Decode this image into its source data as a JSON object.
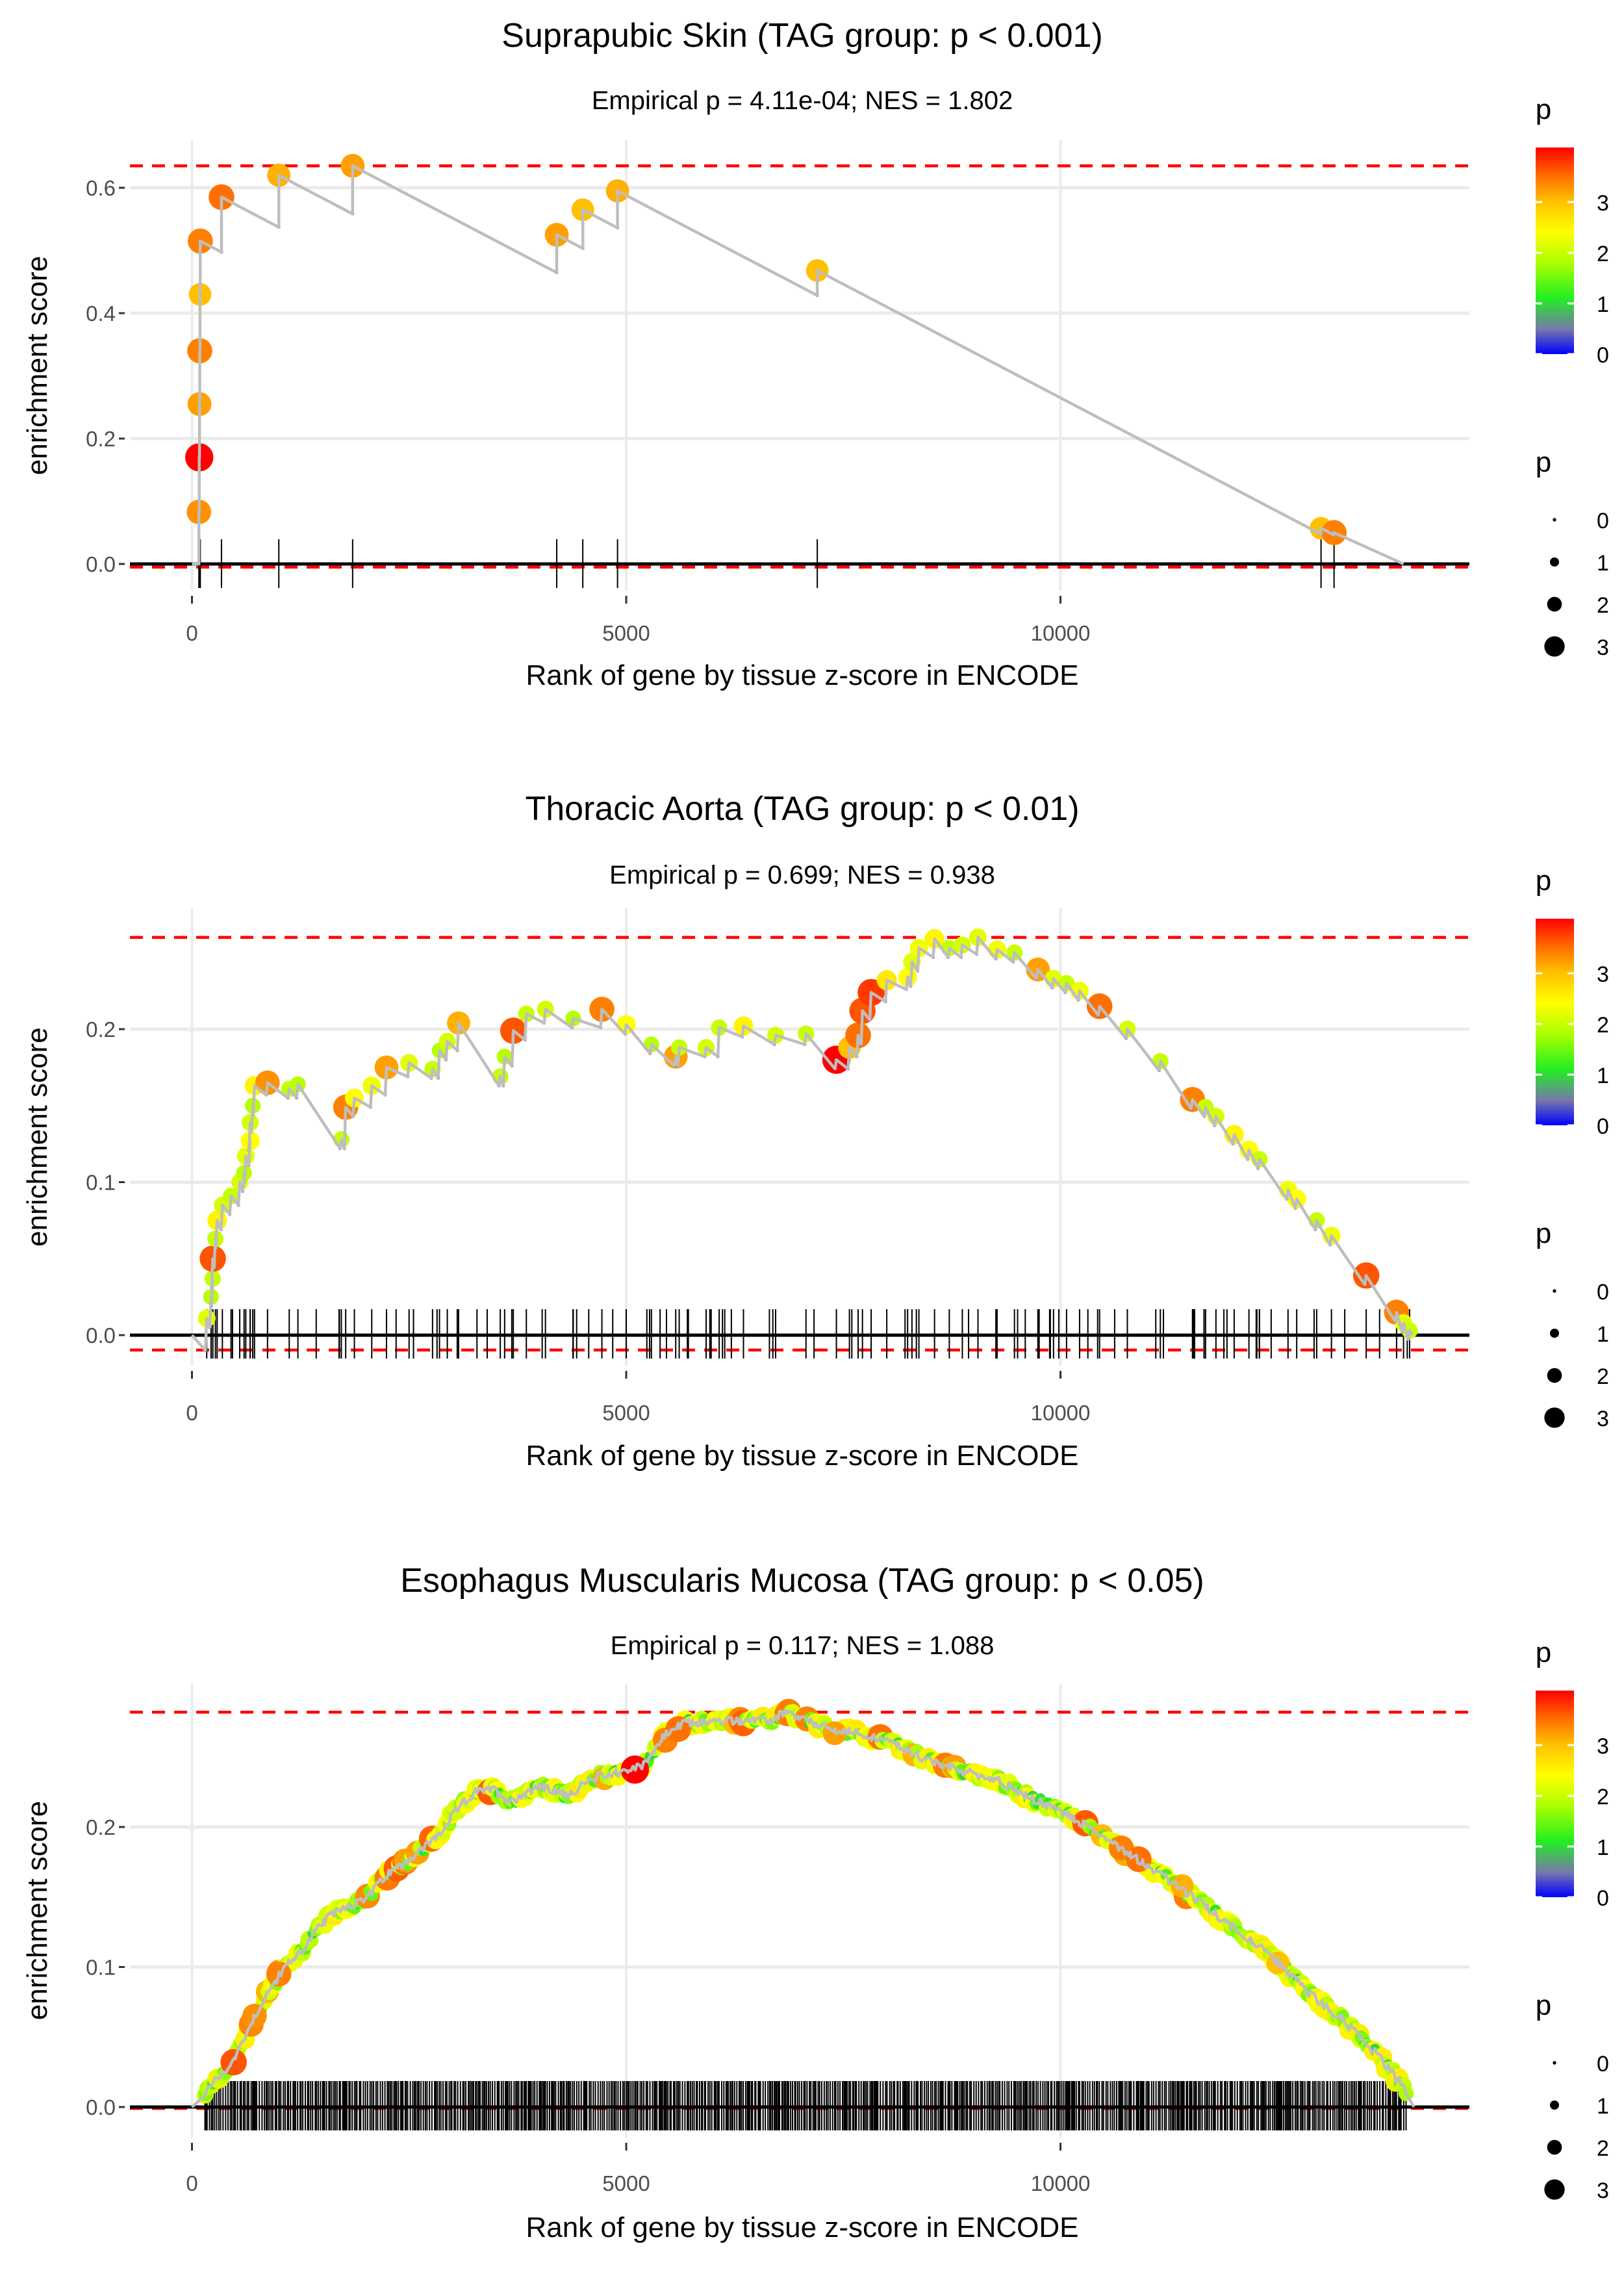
{
  "chart_data": [
    {
      "type": "scatter",
      "title": "Suprapubic Skin (TAG group: p < 0.001)",
      "subtitle": "Empirical p = 4.11e-04; NES = 1.802",
      "xlabel": "Rank of gene by tissue z-score in ENCODE",
      "ylabel": "enrichment score",
      "xticks": [
        "0",
        "5000",
        "10000"
      ],
      "xtick_values": [
        0,
        5000,
        10000
      ],
      "yticks": [
        "0.0",
        "0.2",
        "0.4",
        "0.6"
      ],
      "ytick_values": [
        0,
        0.2,
        0.4,
        0.6
      ],
      "xlim": [
        -800,
        14700
      ],
      "ylim": [
        -0.04,
        0.67
      ],
      "max_line": 0.635,
      "min_line": -0.005,
      "end_rank": 13950,
      "miss_step": 7.25e-05,
      "hits": [
        [
          80,
          0.083,
          3.3
        ],
        [
          84,
          0.17,
          3.9
        ],
        [
          87,
          0.255,
          3.2
        ],
        [
          90,
          0.34,
          3.4
        ],
        [
          93,
          0.43,
          3.0
        ],
        [
          96,
          0.515,
          3.4
        ],
        [
          340,
          0.585,
          3.5
        ],
        [
          1000,
          0.62,
          3.1
        ],
        [
          1850,
          0.635,
          3.2
        ],
        [
          4200,
          0.525,
          3.2
        ],
        [
          4500,
          0.565,
          3.0
        ],
        [
          4900,
          0.595,
          3.1
        ],
        [
          7200,
          0.468,
          3.0
        ],
        [
          13000,
          0.057,
          3.0
        ],
        [
          13150,
          0.05,
          3.4
        ]
      ],
      "legend": {
        "color_title": "p",
        "color_ticks": [
          "0",
          "1",
          "2",
          "3"
        ],
        "size_title": "p",
        "size_ticks": [
          "0",
          "1",
          "2",
          "3"
        ]
      }
    },
    {
      "type": "scatter",
      "title": "Thoracic Aorta (TAG group: p < 0.01)",
      "subtitle": "Empirical p = 0.699; NES = 0.938",
      "xlabel": "Rank of gene by tissue z-score in ENCODE",
      "ylabel": "enrichment score",
      "xticks": [
        "0",
        "5000",
        "10000"
      ],
      "xtick_values": [
        0,
        5000,
        10000
      ],
      "yticks": [
        "0.0",
        "0.1",
        "0.2"
      ],
      "ytick_values": [
        0,
        0.1,
        0.2
      ],
      "xlim": [
        -800,
        14700
      ],
      "ylim": [
        -0.02,
        0.27
      ],
      "max_line": 0.26,
      "min_line": -0.0097,
      "end_rank": 14050,
      "hits": [
        [
          170,
          0.011,
          2.2
        ],
        [
          220,
          0.025,
          1.9
        ],
        [
          240,
          0.037,
          2.0
        ],
        [
          240,
          0.05,
          3.6
        ],
        [
          270,
          0.063,
          2.0
        ],
        [
          290,
          0.075,
          2.5
        ],
        [
          350,
          0.085,
          2.1
        ],
        [
          450,
          0.091,
          2.0
        ],
        [
          550,
          0.1,
          2.1
        ],
        [
          600,
          0.106,
          1.9
        ],
        [
          620,
          0.117,
          2.2
        ],
        [
          670,
          0.127,
          2.4
        ],
        [
          670,
          0.139,
          2.1
        ],
        [
          700,
          0.15,
          1.9
        ],
        [
          720,
          0.163,
          2.5
        ],
        [
          870,
          0.165,
          3.3
        ],
        [
          1120,
          0.161,
          2.0
        ],
        [
          1220,
          0.164,
          1.9
        ],
        [
          1720,
          0.128,
          2.0
        ],
        [
          1770,
          0.149,
          3.4
        ],
        [
          1870,
          0.155,
          2.4
        ],
        [
          2070,
          0.163,
          2.3
        ],
        [
          2240,
          0.175,
          3.2
        ],
        [
          2500,
          0.178,
          2.2
        ],
        [
          2770,
          0.174,
          2.0
        ],
        [
          2850,
          0.186,
          1.9
        ],
        [
          2940,
          0.192,
          2.1
        ],
        [
          3070,
          0.204,
          3.1
        ],
        [
          3550,
          0.169,
          2.0
        ],
        [
          3600,
          0.182,
          1.9
        ],
        [
          3700,
          0.199,
          3.6
        ],
        [
          3850,
          0.21,
          2.0
        ],
        [
          4070,
          0.213,
          2.1
        ],
        [
          4390,
          0.207,
          1.9
        ],
        [
          4720,
          0.213,
          3.4
        ],
        [
          5000,
          0.203,
          2.4
        ],
        [
          5290,
          0.19,
          1.9
        ],
        [
          5570,
          0.182,
          3.2
        ],
        [
          5610,
          0.188,
          2.0
        ],
        [
          5920,
          0.188,
          2.1
        ],
        [
          6070,
          0.201,
          2.0
        ],
        [
          6350,
          0.202,
          2.5
        ],
        [
          6720,
          0.196,
          2.1
        ],
        [
          7070,
          0.197,
          2.0
        ],
        [
          7420,
          0.18,
          3.9
        ],
        [
          7570,
          0.188,
          3.0
        ],
        [
          7670,
          0.196,
          3.5
        ],
        [
          7720,
          0.212,
          3.6
        ],
        [
          7820,
          0.224,
          3.7
        ],
        [
          8000,
          0.232,
          2.6
        ],
        [
          8240,
          0.234,
          2.4
        ],
        [
          8290,
          0.244,
          2.2
        ],
        [
          8370,
          0.253,
          2.3
        ],
        [
          8550,
          0.259,
          2.5
        ],
        [
          8720,
          0.253,
          2.0
        ],
        [
          8870,
          0.255,
          2.1
        ],
        [
          9050,
          0.26,
          2.2
        ],
        [
          9270,
          0.252,
          2.3
        ],
        [
          9470,
          0.25,
          2.0
        ],
        [
          9740,
          0.239,
          3.2
        ],
        [
          9920,
          0.233,
          2.2
        ],
        [
          10070,
          0.23,
          2.0
        ],
        [
          10220,
          0.225,
          2.3
        ],
        [
          10450,
          0.215,
          3.5
        ],
        [
          10770,
          0.2,
          2.1
        ],
        [
          11150,
          0.179,
          2.0
        ],
        [
          11520,
          0.154,
          3.4
        ],
        [
          11670,
          0.149,
          2.0
        ],
        [
          11790,
          0.143,
          2.1
        ],
        [
          12000,
          0.131,
          2.5
        ],
        [
          12170,
          0.121,
          2.4
        ],
        [
          12290,
          0.115,
          2.0
        ],
        [
          12620,
          0.095,
          2.3
        ],
        [
          12720,
          0.089,
          2.4
        ],
        [
          12950,
          0.075,
          2.0
        ],
        [
          13120,
          0.065,
          2.3
        ],
        [
          13520,
          0.039,
          3.6
        ],
        [
          13870,
          0.015,
          3.4
        ],
        [
          13950,
          0.008,
          2.2
        ],
        [
          14020,
          0.003,
          2.0
        ]
      ],
      "legend": {
        "color_title": "p",
        "color_ticks": [
          "0",
          "1",
          "2",
          "3"
        ],
        "size_title": "p",
        "size_ticks": [
          "0",
          "1",
          "2",
          "3"
        ]
      }
    },
    {
      "type": "scatter",
      "title": "Esophagus Muscularis Mucosa (TAG group: p < 0.05)",
      "subtitle": "Empirical p = 0.117; NES = 1.088",
      "xlabel": "Rank of gene by tissue z-score in ENCODE",
      "ylabel": "enrichment score",
      "xticks": [
        "0",
        "5000",
        "10000"
      ],
      "xtick_values": [
        0,
        5000,
        10000
      ],
      "yticks": [
        "0.0",
        "0.1",
        "0.2"
      ],
      "ytick_values": [
        0,
        0.1,
        0.2
      ],
      "xlim": [
        -800,
        14700
      ],
      "ylim": [
        -0.01,
        0.295
      ],
      "max_line": 0.282,
      "min_line": -0.001,
      "end_rank": 14070,
      "curve": [
        [
          20,
          0.0
        ],
        [
          270,
          0.019
        ],
        [
          470,
          0.032
        ],
        [
          720,
          0.065
        ],
        [
          870,
          0.081
        ],
        [
          1070,
          0.1
        ],
        [
          1270,
          0.112
        ],
        [
          1470,
          0.129
        ],
        [
          1670,
          0.141
        ],
        [
          1970,
          0.147
        ],
        [
          2270,
          0.167
        ],
        [
          2570,
          0.18
        ],
        [
          2870,
          0.196
        ],
        [
          3070,
          0.214
        ],
        [
          3270,
          0.225
        ],
        [
          3470,
          0.227
        ],
        [
          3670,
          0.218
        ],
        [
          3970,
          0.229
        ],
        [
          4320,
          0.223
        ],
        [
          4670,
          0.236
        ],
        [
          4970,
          0.24
        ],
        [
          5170,
          0.243
        ],
        [
          5470,
          0.267
        ],
        [
          5670,
          0.274
        ],
        [
          6170,
          0.276
        ],
        [
          6670,
          0.276
        ],
        [
          6820,
          0.282
        ],
        [
          7070,
          0.276
        ],
        [
          7370,
          0.269
        ],
        [
          7670,
          0.267
        ],
        [
          7970,
          0.262
        ],
        [
          8270,
          0.254
        ],
        [
          8470,
          0.247
        ],
        [
          8870,
          0.24
        ],
        [
          9270,
          0.234
        ],
        [
          9570,
          0.223
        ],
        [
          10070,
          0.209
        ],
        [
          10470,
          0.194
        ],
        [
          10870,
          0.178
        ],
        [
          11270,
          0.161
        ],
        [
          11670,
          0.143
        ],
        [
          12070,
          0.125
        ],
        [
          12470,
          0.105
        ],
        [
          12870,
          0.081
        ],
        [
          13270,
          0.061
        ],
        [
          13670,
          0.036
        ],
        [
          13970,
          0.012
        ],
        [
          14070,
          0.0
        ]
      ],
      "highlights": [
        [
          480,
          0.032,
          3.6
        ],
        [
          720,
          0.065,
          3.3
        ],
        [
          1000,
          0.095,
          3.4
        ],
        [
          5100,
          0.241,
          3.9
        ],
        [
          5450,
          0.262,
          3.4
        ],
        [
          5600,
          0.27,
          3.5
        ],
        [
          7400,
          0.267,
          3.2
        ],
        [
          10700,
          0.185,
          3.4
        ],
        [
          10900,
          0.177,
          3.5
        ],
        [
          11400,
          0.158,
          3.1
        ],
        [
          12500,
          0.103,
          3.0
        ]
      ],
      "legend": {
        "color_title": "p",
        "color_ticks": [
          "0",
          "1",
          "2",
          "3"
        ],
        "size_title": "p",
        "size_ticks": [
          "0",
          "1",
          "2",
          "3"
        ]
      }
    }
  ],
  "colors": {
    "line": "#bebebe",
    "dashed": "#ff0000",
    "grid": "#ebebeb",
    "zero_line": "#000000"
  }
}
